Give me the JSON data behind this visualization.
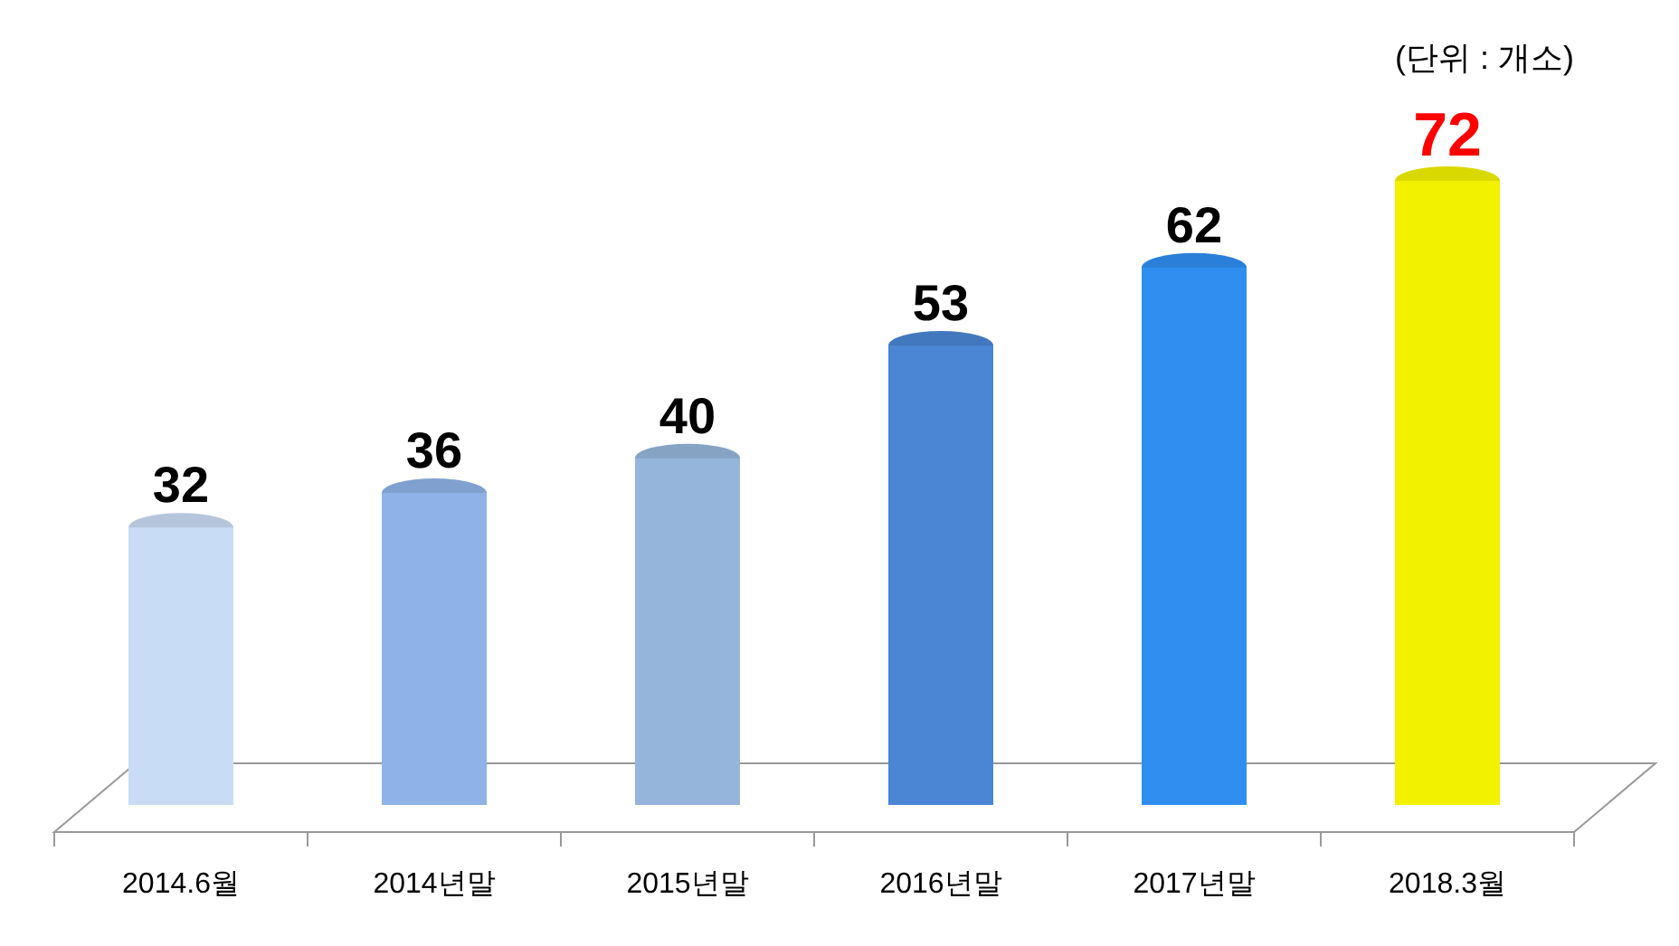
{
  "chart_data": {
    "type": "bar",
    "categories": [
      "2014.6월",
      "2014년말",
      "2015년말",
      "2016년말",
      "2017년말",
      "2018.3월"
    ],
    "values": [
      32,
      36,
      40,
      53,
      62,
      72
    ],
    "colors": [
      "#c9dcf5",
      "#8fb3e8",
      "#95b5da",
      "#4a86d4",
      "#2f8ef0",
      "#f2f200"
    ],
    "data_labels": true,
    "annotations": [
      "(단위 : 개소)"
    ]
  }
}
